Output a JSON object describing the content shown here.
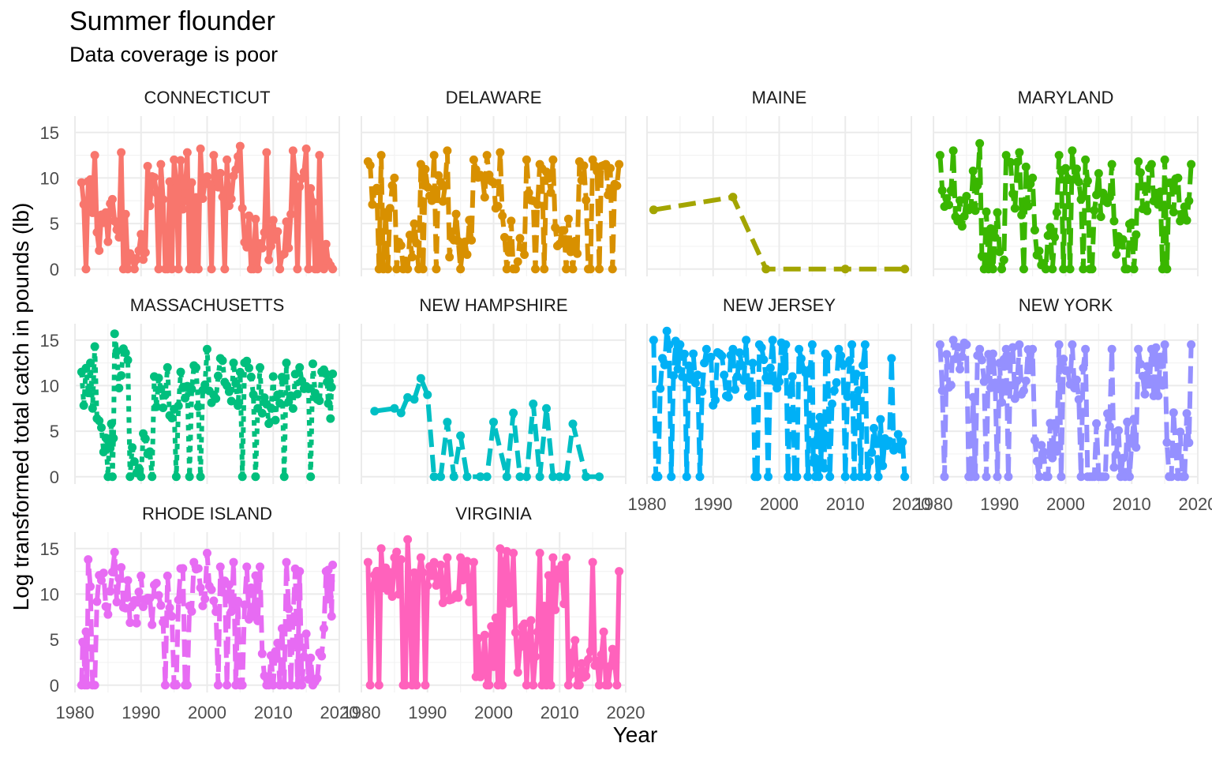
{
  "chart_data": {
    "type": "line",
    "title": "Summer flounder",
    "subtitle": "Data coverage is poor",
    "xlabel": "Year",
    "ylabel": "Log transformed  total catch in pounds (lb)",
    "xlim": [
      1980,
      2020
    ],
    "ylim": [
      -0.8,
      16.8
    ],
    "x_ticks": [
      "1980",
      "1990",
      "2000",
      "2010",
      "2020"
    ],
    "y_ticks": [
      "0",
      "5",
      "10",
      "15"
    ],
    "grid": true,
    "legend": "none",
    "marker": "point",
    "facets": [
      {
        "name": "CONNECTICUT",
        "color": "#F8766D",
        "dash": "solid",
        "seed": 11,
        "x": [
          1981,
          1983,
          1985,
          1987,
          1989,
          1991,
          1993,
          1995,
          1997,
          1999,
          2001,
          2003,
          2005,
          2007,
          2009,
          2011,
          2013,
          2015,
          2017,
          2019
        ],
        "y": [
          9.5,
          12.5,
          3.0,
          12.8,
          0,
          11.3,
          11.5,
          12.0,
          12.8,
          13.2,
          12.5,
          12.0,
          13.5,
          0,
          12.8,
          0,
          13.0,
          13.2,
          12.5,
          0
        ]
      },
      {
        "name": "DELAWARE",
        "color": "#D89000",
        "dash": "long",
        "seed": 23,
        "x": [
          1981,
          1983,
          1985,
          1987,
          1989,
          1991,
          1993,
          1995,
          1997,
          1999,
          2001,
          2003,
          2005,
          2007,
          2009,
          2011,
          2013,
          2015,
          2017,
          2019
        ],
        "y": [
          11.8,
          12.5,
          10.0,
          0,
          11.5,
          12.5,
          13.0,
          0,
          12.0,
          12.5,
          12.8,
          0,
          12.0,
          11.5,
          12.0,
          0,
          11.8,
          12.0,
          11.5,
          11.5
        ]
      },
      {
        "name": "MAINE",
        "color": "#A3A500",
        "dash": "long",
        "seed": 0,
        "x": [
          1981,
          1993,
          1998,
          2010,
          2019
        ],
        "y": [
          6.5,
          7.9,
          0,
          0,
          0
        ]
      },
      {
        "name": "MARYLAND",
        "color": "#39B600",
        "dash": "long",
        "seed": 37,
        "x": [
          1981,
          1983,
          1985,
          1987,
          1989,
          1991,
          1993,
          1995,
          1997,
          1999,
          2001,
          2003,
          2005,
          2007,
          2009,
          2011,
          2013,
          2015,
          2017,
          2019
        ],
        "y": [
          12.5,
          13.0,
          8.0,
          13.8,
          0,
          12.5,
          12.8,
          10.0,
          0,
          12.5,
          13.0,
          12.0,
          10.5,
          11.5,
          0,
          11.8,
          11.5,
          12.0,
          10.0,
          11.5
        ]
      },
      {
        "name": "MASSACHUSETTS",
        "color": "#00BF7D",
        "dash": "dot",
        "seed": 41,
        "x": [
          1981,
          1983,
          1985,
          1986,
          1988,
          1990,
          1992,
          1994,
          1996,
          1998,
          2000,
          2002,
          2004,
          2006,
          2008,
          2010,
          2012,
          2014,
          2016,
          2018,
          2019
        ],
        "y": [
          11.5,
          14.3,
          0,
          15.7,
          12.8,
          0,
          11.0,
          12.0,
          11.5,
          12.2,
          14.0,
          13.0,
          12.5,
          12.7,
          12.0,
          11.0,
          12.5,
          12.0,
          12.4,
          11.3,
          11.3
        ]
      },
      {
        "name": "NEW HAMPSHIRE",
        "color": "#00BFC4",
        "dash": "long",
        "seed": 0,
        "x": [
          1982,
          1985,
          1986,
          1987,
          1988,
          1989,
          1990,
          1991,
          1992,
          1993,
          1994,
          1995,
          1996,
          1998,
          1999,
          2000,
          2002,
          2003,
          2004,
          2005,
          2006,
          2007,
          2008,
          2009,
          2010,
          2011,
          2012,
          2014,
          2016
        ],
        "y": [
          7.2,
          7.5,
          7.0,
          8.7,
          8.5,
          10.8,
          9.0,
          0,
          0,
          6.0,
          0,
          4.5,
          0,
          0,
          0,
          6.0,
          0,
          7.0,
          0,
          0,
          8.0,
          0,
          7.5,
          0,
          0,
          0,
          5.8,
          0,
          0
        ]
      },
      {
        "name": "NEW JERSEY",
        "color": "#00B0F6",
        "dash": "long",
        "seed": 53,
        "x": [
          1981,
          1983,
          1985,
          1987,
          1989,
          1991,
          1993,
          1995,
          1997,
          1999,
          2001,
          2003,
          2005,
          2006,
          2007,
          2009,
          2011,
          2013,
          2015,
          2017,
          2019
        ],
        "y": [
          15.0,
          16.0,
          14.5,
          13.5,
          14.0,
          13.5,
          14.0,
          15.0,
          14.5,
          15.0,
          14.5,
          14.0,
          14.5,
          0,
          13.5,
          14.0,
          14.5,
          14.5,
          0,
          13.0,
          0
        ]
      },
      {
        "name": "NEW YORK",
        "color": "#9590FF",
        "dash": "long",
        "seed": 67,
        "x": [
          1981,
          1983,
          1985,
          1987,
          1989,
          1991,
          1993,
          1995,
          1997,
          1999,
          2001,
          2003,
          2005,
          2007,
          2009,
          2011,
          2013,
          2015,
          2017,
          2019
        ],
        "y": [
          14.5,
          15.0,
          14.5,
          14.0,
          13.5,
          14.0,
          14.5,
          14.0,
          0,
          14.5,
          14.5,
          14.0,
          0,
          14.0,
          0,
          14.0,
          14.0,
          14.5,
          0,
          14.5
        ]
      },
      {
        "name": "RHODE ISLAND",
        "color": "#E76BF3",
        "dash": "long",
        "seed": 79,
        "x": [
          1981,
          1982,
          1984,
          1986,
          1988,
          1990,
          1992,
          1994,
          1996,
          1998,
          2000,
          2002,
          2004,
          2006,
          2008,
          2010,
          2012,
          2014,
          2016,
          2018,
          2019
        ],
        "y": [
          0,
          13.8,
          11.5,
          14.6,
          11.5,
          12.0,
          11.0,
          12.0,
          12.8,
          13.5,
          14.5,
          13.0,
          13.5,
          13.0,
          13.0,
          0,
          13.5,
          12.5,
          0,
          12.5,
          13.2
        ]
      },
      {
        "name": "VIRGINIA",
        "color": "#FF62BC",
        "dash": "solid",
        "seed": 83,
        "x": [
          1981,
          1983,
          1985,
          1987,
          1989,
          1991,
          1993,
          1995,
          1997,
          1999,
          2001,
          2003,
          2005,
          2007,
          2009,
          2011,
          2013,
          2015,
          2017,
          2019
        ],
        "y": [
          13.5,
          15.0,
          14.0,
          16.0,
          14.0,
          13.5,
          14.0,
          14.0,
          13.5,
          0,
          15.0,
          14.5,
          0,
          14.5,
          14.0,
          14.0,
          0,
          13.5,
          0,
          12.5
        ]
      }
    ]
  }
}
